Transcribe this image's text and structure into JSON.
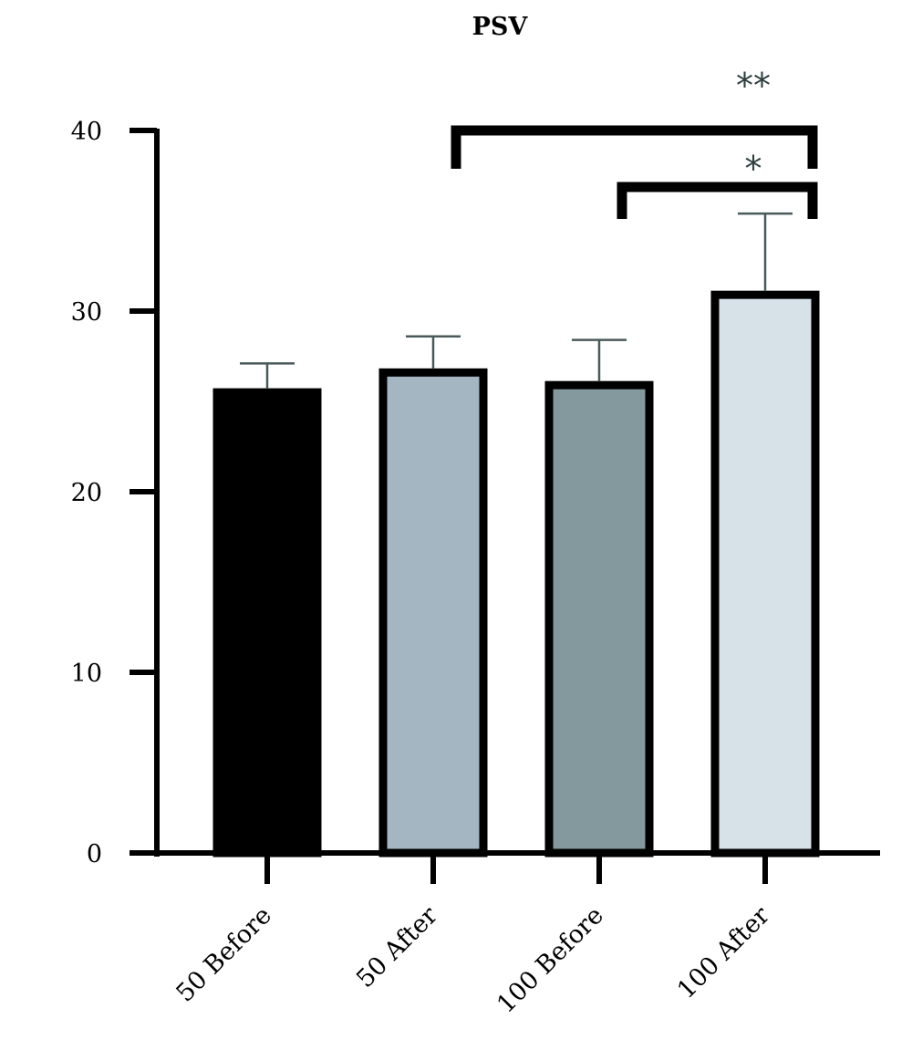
{
  "chart_data": {
    "type": "bar",
    "title": "PSV",
    "xlabel": "",
    "ylabel": "",
    "ylim": [
      0,
      40
    ],
    "yticks": [
      0,
      10,
      20,
      30,
      40
    ],
    "grid": false,
    "categories": [
      "50 Before",
      "50 After",
      "100 Before",
      "100 After"
    ],
    "values": [
      25.5,
      26.6,
      25.9,
      30.9
    ],
    "errors": [
      1.6,
      2.0,
      2.5,
      4.5
    ],
    "colors": [
      "#000000",
      "#a4b6c2",
      "#84999d",
      "#d6e1e8"
    ],
    "significance": [
      {
        "from": "100 Before",
        "to": "100 After",
        "label": "*"
      },
      {
        "from": "50 After",
        "to": "100 After",
        "label": "**"
      }
    ]
  }
}
